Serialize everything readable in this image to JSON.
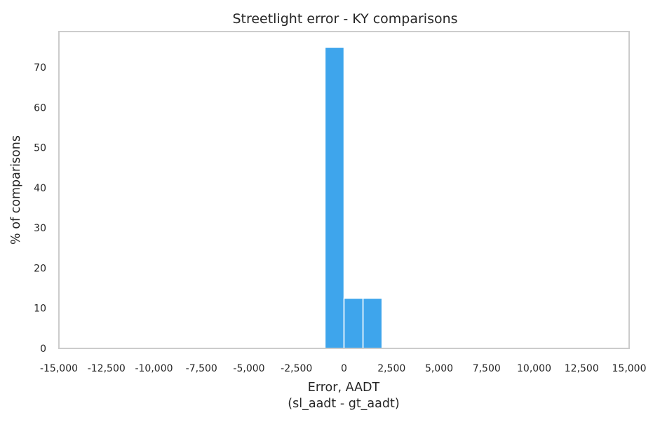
{
  "chart_data": {
    "type": "bar",
    "title": "Streetlight error - KY comparisons",
    "xlabel": "Error, AADT",
    "xlabel_line2": "(sl_aadt - gt_aadt)",
    "ylabel": "% of comparisons",
    "xlim": [
      -15000,
      15000
    ],
    "ylim": [
      0,
      78.9
    ],
    "x_ticks": [
      -15000,
      -12500,
      -10000,
      -7500,
      -5000,
      -2500,
      0,
      2500,
      5000,
      7500,
      10000,
      12500,
      15000
    ],
    "x_tick_labels": [
      "-15,000",
      "-12,500",
      "-10,000",
      "-7,500",
      "-5,000",
      "-2,500",
      "0",
      "2,500",
      "5,000",
      "7,500",
      "10,000",
      "12,500",
      "15,000"
    ],
    "y_ticks": [
      0,
      10,
      20,
      30,
      40,
      50,
      60,
      70
    ],
    "y_tick_labels": [
      "0",
      "10",
      "20",
      "30",
      "40",
      "50",
      "60",
      "70"
    ],
    "grid": false,
    "bar_color": "#3ea5ec",
    "frame_color": "#cccccc",
    "bins": [
      {
        "x0": -1000,
        "x1": 0,
        "value": 75
      },
      {
        "x0": 0,
        "x1": 1000,
        "value": 12.5
      },
      {
        "x0": 1000,
        "x1": 2000,
        "value": 12.5
      }
    ]
  }
}
